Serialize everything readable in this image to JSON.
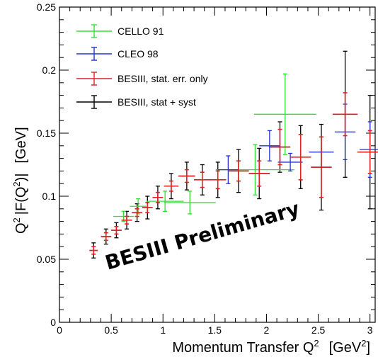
{
  "chart_data": {
    "type": "scatter",
    "title": "",
    "xlabel": "Momentum Transfer Q",
    "xlabel_sup": "2",
    "xlabel_unit": "[GeV",
    "xlabel_unit_sup": "2",
    "xlabel_unit_close": "]",
    "ylabel_q": "Q",
    "ylabel_q_sup": "2",
    "ylabel_mid": "|F(Q",
    "ylabel_mid_sup": "2",
    "ylabel_close": ")|",
    "ylabel_unit": "[GeV]",
    "xlim": [
      0,
      3.05
    ],
    "ylim": [
      0,
      0.25
    ],
    "x_ticks": [
      0,
      0.5,
      1,
      1.5,
      2,
      2.5,
      3
    ],
    "x_tick_labels": [
      "0",
      "0.5",
      "1",
      "1.5",
      "2",
      "2.5",
      "3"
    ],
    "y_ticks": [
      0,
      0.05,
      0.1,
      0.15,
      0.2,
      0.25
    ],
    "y_tick_labels": [
      "0",
      "0.05",
      "0.1",
      "0.15",
      "0.2",
      "0.25"
    ],
    "legend_position": "top-left",
    "annotation": "BESIII Preliminary",
    "series": [
      {
        "name": "CELLO 91",
        "color": "#33dd33",
        "points": [
          {
            "x": 0.62,
            "y": 0.084,
            "xerr": 0.1,
            "yerr": 0.004
          },
          {
            "x": 0.76,
            "y": 0.092,
            "xerr": 0.08,
            "yerr": 0.006
          },
          {
            "x": 1.02,
            "y": 0.096,
            "xerr": 0.18,
            "yerr": 0.008
          },
          {
            "x": 1.26,
            "y": 0.095,
            "xerr": 0.25,
            "yerr": 0.009
          },
          {
            "x": 1.89,
            "y": 0.121,
            "xerr": 0.38,
            "yerr": 0.02
          },
          {
            "x": 2.18,
            "y": 0.165,
            "xerr": 0.3,
            "yerr": 0.032
          }
        ]
      },
      {
        "name": "CLEO 98",
        "color": "#2233cc",
        "points": [
          {
            "x": 1.63,
            "y": 0.121,
            "xerr": 0.1,
            "yerr": 0.011
          },
          {
            "x": 2.03,
            "y": 0.14,
            "xerr": 0.1,
            "yerr": 0.012
          },
          {
            "x": 2.23,
            "y": 0.127,
            "xerr": 0.12,
            "yerr": 0.007
          },
          {
            "x": 2.53,
            "y": 0.135,
            "xerr": 0.12,
            "yerr": 0.012
          },
          {
            "x": 2.76,
            "y": 0.151,
            "xerr": 0.1,
            "yerr": 0.022
          },
          {
            "x": 3.0,
            "y": 0.137,
            "xerr": 0.1,
            "yerr": 0.022
          }
        ]
      },
      {
        "name": "BESIII, stat. err. only",
        "color": "#dd2222",
        "points": [
          {
            "x": 0.33,
            "y": 0.057,
            "xerr": 0.04,
            "yerr": 0.003
          },
          {
            "x": 0.45,
            "y": 0.068,
            "xerr": 0.05,
            "yerr": 0.003
          },
          {
            "x": 0.55,
            "y": 0.073,
            "xerr": 0.05,
            "yerr": 0.003
          },
          {
            "x": 0.65,
            "y": 0.081,
            "xerr": 0.05,
            "yerr": 0.003
          },
          {
            "x": 0.75,
            "y": 0.087,
            "xerr": 0.05,
            "yerr": 0.003
          },
          {
            "x": 0.85,
            "y": 0.091,
            "xerr": 0.05,
            "yerr": 0.004
          },
          {
            "x": 0.95,
            "y": 0.099,
            "xerr": 0.05,
            "yerr": 0.004
          },
          {
            "x": 1.08,
            "y": 0.108,
            "xerr": 0.07,
            "yerr": 0.004
          },
          {
            "x": 1.23,
            "y": 0.116,
            "xerr": 0.08,
            "yerr": 0.005
          },
          {
            "x": 1.38,
            "y": 0.113,
            "xerr": 0.08,
            "yerr": 0.006
          },
          {
            "x": 1.53,
            "y": 0.113,
            "xerr": 0.08,
            "yerr": 0.007
          },
          {
            "x": 1.73,
            "y": 0.12,
            "xerr": 0.1,
            "yerr": 0.008
          },
          {
            "x": 1.93,
            "y": 0.118,
            "xerr": 0.1,
            "yerr": 0.01
          },
          {
            "x": 2.13,
            "y": 0.139,
            "xerr": 0.1,
            "yerr": 0.014
          },
          {
            "x": 2.33,
            "y": 0.131,
            "xerr": 0.1,
            "yerr": 0.018
          },
          {
            "x": 2.53,
            "y": 0.123,
            "xerr": 0.1,
            "yerr": 0.024
          },
          {
            "x": 2.76,
            "y": 0.165,
            "xerr": 0.12,
            "yerr": 0.017
          },
          {
            "x": 3.0,
            "y": 0.135,
            "xerr": 0.12,
            "yerr": 0.017
          }
        ]
      },
      {
        "name": "BESIII, stat + syst",
        "color": "#000000",
        "points": [
          {
            "x": 0.33,
            "y": 0.057,
            "xerr": 0.04,
            "yerr": 0.006
          },
          {
            "x": 0.45,
            "y": 0.068,
            "xerr": 0.05,
            "yerr": 0.006
          },
          {
            "x": 0.55,
            "y": 0.073,
            "xerr": 0.05,
            "yerr": 0.006
          },
          {
            "x": 0.65,
            "y": 0.081,
            "xerr": 0.05,
            "yerr": 0.007
          },
          {
            "x": 0.75,
            "y": 0.087,
            "xerr": 0.05,
            "yerr": 0.007
          },
          {
            "x": 0.85,
            "y": 0.091,
            "xerr": 0.05,
            "yerr": 0.009
          },
          {
            "x": 0.95,
            "y": 0.099,
            "xerr": 0.05,
            "yerr": 0.009
          },
          {
            "x": 1.08,
            "y": 0.108,
            "xerr": 0.07,
            "yerr": 0.01
          },
          {
            "x": 1.23,
            "y": 0.116,
            "xerr": 0.08,
            "yerr": 0.011
          },
          {
            "x": 1.38,
            "y": 0.113,
            "xerr": 0.08,
            "yerr": 0.012
          },
          {
            "x": 1.53,
            "y": 0.113,
            "xerr": 0.08,
            "yerr": 0.014
          },
          {
            "x": 1.73,
            "y": 0.12,
            "xerr": 0.1,
            "yerr": 0.017
          },
          {
            "x": 1.93,
            "y": 0.118,
            "xerr": 0.1,
            "yerr": 0.02
          },
          {
            "x": 2.13,
            "y": 0.139,
            "xerr": 0.1,
            "yerr": 0.02
          },
          {
            "x": 2.33,
            "y": 0.131,
            "xerr": 0.1,
            "yerr": 0.025
          },
          {
            "x": 2.53,
            "y": 0.123,
            "xerr": 0.1,
            "yerr": 0.034
          },
          {
            "x": 2.76,
            "y": 0.165,
            "xerr": 0.12,
            "yerr": 0.05
          },
          {
            "x": 3.0,
            "y": 0.135,
            "xerr": 0.12,
            "yerr": 0.045
          }
        ]
      }
    ]
  }
}
